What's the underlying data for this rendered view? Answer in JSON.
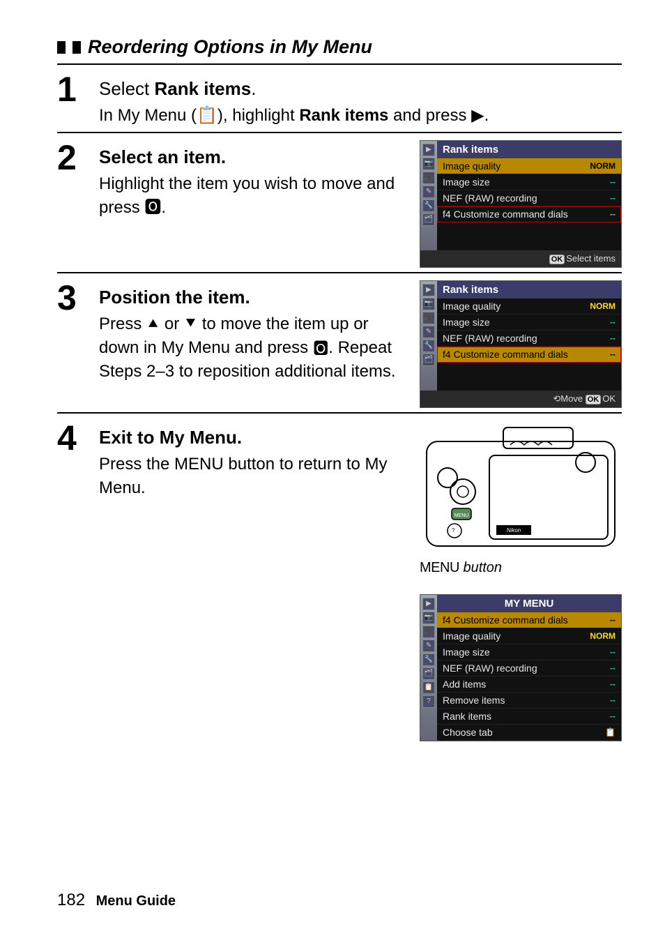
{
  "heading": "Reordering Options in My Menu",
  "steps": [
    {
      "number": "1",
      "title_prefix": "Select ",
      "title_bold": "Rank items",
      "title_suffix": ".",
      "text_html": "In My Menu (📋), highlight <b>Rank items</b> and press ▶."
    },
    {
      "number": "2",
      "title_prefix": "Select an item.",
      "title_bold": "",
      "title_suffix": "",
      "text_html": "Highlight the item you wish to move and press 🅾."
    },
    {
      "number": "3",
      "title_prefix": "Position the item.",
      "title_bold": "",
      "title_suffix": "",
      "text_html": "Press ⯅ or ⯆ to move the item up or down in My Menu and press 🅾. Repeat Steps 2–3 to reposition additional items."
    },
    {
      "number": "4",
      "title_prefix": "Exit to My Menu.",
      "title_bold": "",
      "title_suffix": "",
      "text_html": "Press the <span class='menu-word-inline'>MENU</span> button to return to My Menu."
    }
  ],
  "menu_shot_step2": {
    "title": "Rank items",
    "rows": [
      {
        "label": "Image quality",
        "value": "NORM",
        "hl": true,
        "valClass": ""
      },
      {
        "label": "Image size",
        "value": "--",
        "hl": false,
        "valClass": "teal"
      },
      {
        "label": "NEF (RAW) recording",
        "value": "--",
        "hl": false,
        "valClass": "teal"
      },
      {
        "label": "f4 Customize command dials",
        "value": "--",
        "hl": false,
        "valClass": "dark",
        "box": true
      }
    ],
    "footer_badge": "OK",
    "footer": "Select items"
  },
  "menu_shot_step3": {
    "title": "Rank items",
    "rows": [
      {
        "label": "Image quality",
        "value": "NORM",
        "hl": false,
        "valClass": ""
      },
      {
        "label": "Image size",
        "value": "--",
        "hl": false,
        "valClass": "teal"
      },
      {
        "label": "NEF (RAW) recording",
        "value": "--",
        "hl": false,
        "valClass": "teal"
      },
      {
        "label": "f4 Customize command dials",
        "value": "--",
        "hl": true,
        "valClass": "",
        "box": true
      }
    ],
    "footer_pre": "⟲Move ",
    "footer_badge": "OK",
    "footer": "OK"
  },
  "camera_caption_menu": "MENU",
  "camera_caption_rest": " button",
  "menu_shot_result": {
    "title": "MY MENU",
    "rows": [
      {
        "label": "f4 Customize command dials",
        "value": "--",
        "hl": true,
        "valClass": ""
      },
      {
        "label": "Image quality",
        "value": "NORM",
        "hl": false,
        "valClass": ""
      },
      {
        "label": "Image size",
        "value": "--",
        "hl": false,
        "valClass": "teal"
      },
      {
        "label": "NEF (RAW) recording",
        "value": "--",
        "hl": false,
        "valClass": "teal"
      },
      {
        "label": "Add items",
        "value": "--",
        "hl": false,
        "valClass": "teal"
      },
      {
        "label": "Remove items",
        "value": "--",
        "hl": false,
        "valClass": "teal"
      },
      {
        "label": "Rank items",
        "value": "--",
        "hl": false,
        "valClass": "teal"
      },
      {
        "label": "Choose tab",
        "value": "📋",
        "hl": false,
        "valClass": "dark"
      }
    ],
    "footer": ""
  },
  "sidebar_icons": [
    "▶",
    "📷",
    "🎥",
    "✎",
    "🔧",
    "🗂",
    "📋",
    "?"
  ],
  "colors": {
    "highlight_bg": "#b88800",
    "value_yellow": "#ffd83a",
    "value_teal": "#26c0c0",
    "menu_title_bg": "#3c3c6a",
    "page_bg": "#ffffff",
    "text": "#000000"
  },
  "page_number": "182",
  "page_label": "Menu Guide"
}
